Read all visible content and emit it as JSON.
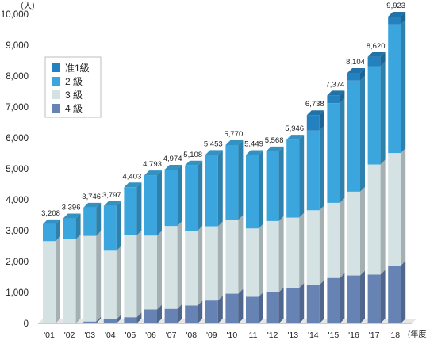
{
  "chart_data": {
    "type": "bar",
    "stacked": true,
    "style": "3d",
    "y_unit": "（人）",
    "x_unit": "(年度)",
    "ylim": [
      0,
      10000
    ],
    "yticks": [
      "0",
      "1,000",
      "2,000",
      "3,000",
      "4,000",
      "5,000",
      "6,000",
      "7,000",
      "8,000",
      "9,000",
      "10,000"
    ],
    "ytick_values": [
      0,
      1000,
      2000,
      3000,
      4000,
      5000,
      6000,
      7000,
      8000,
      9000,
      10000
    ],
    "categories": [
      "'01",
      "'02",
      "'03",
      "'04",
      "'05",
      "'06",
      "'07",
      "'08",
      "'09",
      "'10",
      "'11",
      "'12",
      "'13",
      "'14",
      "'15",
      "'16",
      "'17",
      "'18"
    ],
    "totals": [
      "3,208",
      "3,396",
      "3,746",
      "3,797",
      "4,403",
      "4,793",
      "4,974",
      "5,108",
      "5,453",
      "5,770",
      "5,449",
      "5,568",
      "5,946",
      "6,738",
      "7,374",
      "8,104",
      "8,620",
      "9,923"
    ],
    "series": [
      {
        "name": "4 級",
        "color": "#6683b3",
        "values": [
          0,
          0,
          60,
          130,
          200,
          450,
          470,
          580,
          740,
          960,
          860,
          1010,
          1150,
          1250,
          1470,
          1550,
          1580,
          1870
        ]
      },
      {
        "name": "3 級",
        "color": "#d4e2e4",
        "values": [
          2660,
          2720,
          2770,
          2220,
          2650,
          2390,
          2680,
          2420,
          2400,
          2390,
          2210,
          2300,
          2270,
          2410,
          2430,
          2710,
          3560,
          3640
        ]
      },
      {
        "name": "2 級",
        "color": "#3ba6dd",
        "values": [
          548,
          676,
          916,
          1447,
          1553,
          1953,
          1824,
          2108,
          2313,
          2420,
          2379,
          2258,
          2526,
          2578,
          3224,
          3594,
          3180,
          4163
        ]
      },
      {
        "name": "准1級",
        "color": "#2481bf",
        "values": [
          0,
          0,
          0,
          0,
          0,
          0,
          0,
          0,
          0,
          0,
          0,
          0,
          0,
          500,
          250,
          250,
          300,
          250
        ]
      }
    ],
    "legend": {
      "position": "top-left",
      "entries": [
        "准1級",
        "2 級",
        "3 級",
        "4 級"
      ]
    },
    "grid": false
  }
}
